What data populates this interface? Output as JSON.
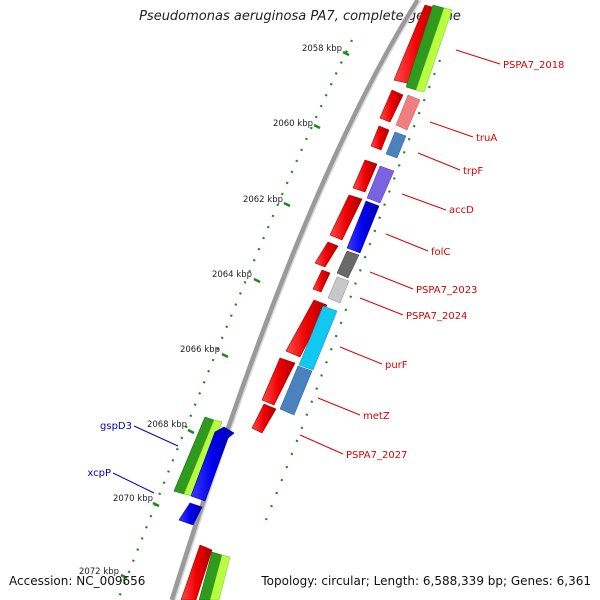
{
  "title": "Pseudomonas aeruginosa PA7, complete genome",
  "footer": {
    "accession": "Accession: NC_009656",
    "topology": "Topology: circular; Length: 6,588,339 bp; Genes: 6,361"
  },
  "kbp_labels": [
    "2058 kbp",
    "2060 kbp",
    "2062 kbp",
    "2064 kbp",
    "2066 kbp",
    "2068 kbp",
    "2070 kbp",
    "2072 kbp"
  ],
  "genes_right": [
    {
      "name": "PSPA7_2018",
      "color": "#dd0000"
    },
    {
      "name": "truA",
      "color": "#dd0000"
    },
    {
      "name": "trpF",
      "color": "#dd0000"
    },
    {
      "name": "accD",
      "color": "#dd0000"
    },
    {
      "name": "folC",
      "color": "#dd0000"
    },
    {
      "name": "PSPA7_2023",
      "color": "#dd0000"
    },
    {
      "name": "PSPA7_2024",
      "color": "#dd0000"
    },
    {
      "name": "purF",
      "color": "#dd0000"
    },
    {
      "name": "metZ",
      "color": "#dd0000"
    },
    {
      "name": "PSPA7_2027",
      "color": "#dd0000"
    }
  ],
  "genes_left": [
    {
      "name": "gspD3",
      "color": "#0000cc"
    },
    {
      "name": "xcpP",
      "color": "#0000cc"
    }
  ],
  "colors": {
    "backbone": "#8a8a8a",
    "tick": "#1a8a1a",
    "dot": "#1a8a1a",
    "gene_red": "#ee0000",
    "gene_blue": "#0000ee",
    "label_red": "#dd0000",
    "label_blue": "#0000cc"
  }
}
